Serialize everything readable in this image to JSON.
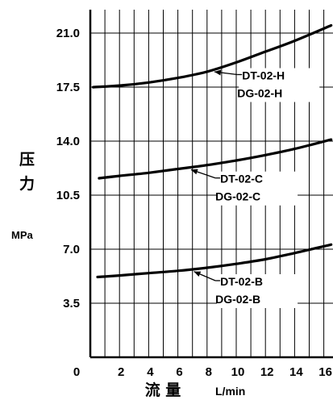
{
  "chart_data": {
    "type": "line",
    "title": "",
    "ylabel": "压力",
    "yunit": "MPa",
    "xlabel_cjk": "流 量",
    "xunit": "L/min",
    "xlim": [
      0,
      16.5
    ],
    "ylim": [
      0,
      22.4
    ],
    "x_ticks": [
      0,
      2,
      4,
      6,
      8,
      10,
      12,
      14,
      16
    ],
    "x_tick_labels": [
      "0",
      "2",
      "4",
      "6",
      "8",
      "10",
      "12",
      "14",
      "16"
    ],
    "y_ticks": [
      3.5,
      7.0,
      10.5,
      14.0,
      17.5,
      21.0
    ],
    "y_tick_labels": [
      "3.5",
      "7.0",
      "10.5",
      "14.0",
      "17.5",
      "21.0"
    ],
    "grid": true,
    "series": [
      {
        "name": "DT-02-H / DG-02-H",
        "labels": [
          "DT-02-H",
          "DG-02-H"
        ],
        "x": [
          0.2,
          2,
          4,
          6,
          8,
          10,
          12,
          14,
          16.5
        ],
        "y": [
          17.5,
          17.6,
          17.8,
          18.1,
          18.5,
          19.1,
          19.8,
          20.5,
          21.5
        ]
      },
      {
        "name": "DT-02-C / DG-02-C",
        "labels": [
          "DT-02-C",
          "DG-02-C"
        ],
        "x": [
          0.6,
          2,
          4,
          6,
          8,
          10,
          12,
          14,
          16.5
        ],
        "y": [
          11.6,
          11.75,
          11.95,
          12.2,
          12.45,
          12.75,
          13.1,
          13.5,
          14.1
        ]
      },
      {
        "name": "DT-02-B / DG-02-B",
        "labels": [
          "DT-02-B",
          "DG-02-B"
        ],
        "x": [
          0.5,
          2,
          4,
          6,
          8,
          10,
          12,
          14,
          16.5
        ],
        "y": [
          5.2,
          5.3,
          5.45,
          5.6,
          5.8,
          6.05,
          6.35,
          6.75,
          7.3
        ]
      }
    ],
    "annotations": [
      {
        "series": 0,
        "point_x": 8.5,
        "label_x": 10.4,
        "label_y": 18.0
      },
      {
        "series": 1,
        "point_x": 6.9,
        "label_x": 8.9,
        "label_y": 11.3
      },
      {
        "series": 2,
        "point_x": 7.1,
        "label_x": 8.9,
        "label_y": 4.65
      }
    ]
  }
}
